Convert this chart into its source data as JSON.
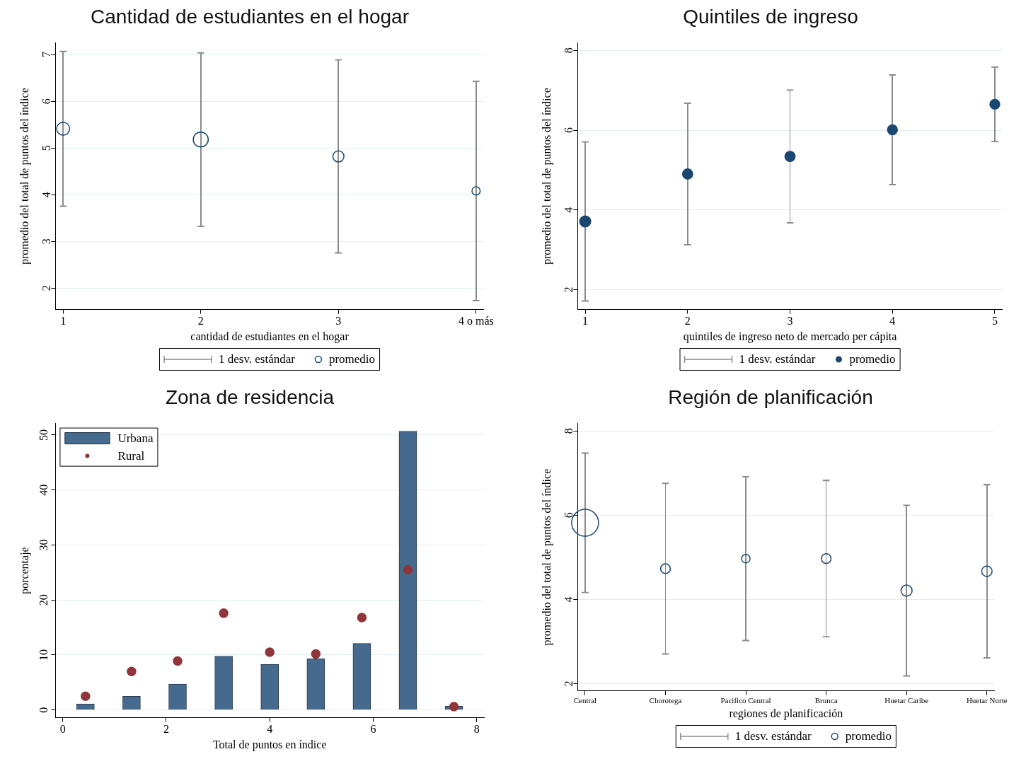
{
  "chart_data": [
    {
      "type": "bubble",
      "title": "Cantidad de estudiantes en el hogar",
      "xlabel": "cantidad de estudiantes en el hogar",
      "ylabel": "promedio del total de puntos del índice",
      "categories": [
        "1",
        "2",
        "3",
        "4 o más"
      ],
      "series": [
        {
          "name": "1 desv. estándar",
          "type": "bar",
          "color": "#8c8c8c",
          "base": [
            3.74,
            3.31,
            2.74,
            1.72
          ],
          "values": [
            3.34,
            3.74,
            4.16,
            4.72
          ]
        },
        {
          "name": "promedio",
          "color": "#1a476f",
          "values": [
            5.41,
            5.18,
            4.82,
            4.08
          ],
          "sizes": [
            0.75,
            1,
            0.55,
            0.3
          ]
        }
      ],
      "ylim": [
        1.54,
        7.25
      ],
      "yticks": [
        2,
        3,
        4,
        5,
        6,
        7
      ],
      "grid": "y",
      "marker": "circle",
      "legend": "bottom"
    },
    {
      "type": "bubble",
      "title": "Quintiles de ingreso",
      "xlabel": "quintiles de ingreso neto de mercado per cápita",
      "ylabel": "promedio del total de puntos del índice",
      "categories": [
        "1",
        "2",
        "3",
        "4",
        "5"
      ],
      "series": [
        {
          "name": "1 desv. estándar",
          "type": "bar",
          "color": "#8c8c8c",
          "base": [
            1.7,
            3.11,
            3.66,
            4.62,
            5.7
          ],
          "values": [
            4.02,
            3.58,
            3.36,
            2.78,
            1.9
          ]
        },
        {
          "name": "promedio",
          "color": "#1a476f",
          "values": [
            3.71,
            4.9,
            5.34,
            6.01,
            6.65
          ],
          "sizes": [
            1,
            0.85,
            0.85,
            0.8,
            0.8
          ]
        }
      ],
      "ylim": [
        1.5,
        8.19
      ],
      "yticks": [
        2,
        4,
        6,
        8
      ],
      "grid": "y",
      "marker": "circle",
      "legend": "bottom"
    },
    {
      "type": "bar",
      "title": "Zona de residencia",
      "xlabel": "Total de puntos en índice",
      "ylabel": "porcentaje",
      "x": [
        0.44,
        1.33,
        2.22,
        3.11,
        4,
        4.89,
        5.78,
        6.67,
        7.56
      ],
      "series": [
        {
          "name": "Urbana",
          "color": "#466a8e",
          "values": [
            1.1,
            2.5,
            4.7,
            9.8,
            8.3,
            9.3,
            12.1,
            50.7,
            0.7
          ]
        },
        {
          "name": "Rural",
          "type": "scatter",
          "color": "#90353b",
          "values": [
            2.5,
            7.0,
            8.9,
            17.6,
            10.5,
            10.2,
            16.8,
            25.5,
            0.6
          ]
        }
      ],
      "xlim": [
        -0.14,
        8.14
      ],
      "xticks": [
        0,
        2,
        4,
        6,
        8
      ],
      "ylim": [
        -1.4,
        52.1
      ],
      "yticks": [
        0,
        10,
        20,
        30,
        40,
        50
      ],
      "grid": "y",
      "marker": "circle",
      "legend": "top left"
    },
    {
      "type": "bubble",
      "title": "Región de planificación",
      "xlabel": "regiones de planificación",
      "ylabel": "promedio del total de puntos del índice",
      "categories": [
        "Central",
        "Chorotega",
        "Pacifico Central",
        "Brunca",
        "Huetar Caribe",
        "Huetar Norte"
      ],
      "series": [
        {
          "name": "1 desv. estándar",
          "type": "bar",
          "color": "#8c8c8c",
          "base": [
            4.15,
            2.69,
            3.01,
            3.1,
            2.17,
            2.6
          ],
          "values": [
            3.34,
            4.08,
            3.92,
            3.74,
            4.08,
            4.14
          ]
        },
        {
          "name": "promedio",
          "color": "#1a476f",
          "values": [
            5.82,
            4.73,
            4.97,
            4.97,
            4.21,
            4.67
          ],
          "sizes": [
            1,
            0.13,
            0.1,
            0.13,
            0.17,
            0.15
          ]
        }
      ],
      "ylim": [
        1.83,
        8.18
      ],
      "yticks": [
        2,
        4,
        6,
        8
      ],
      "grid": "y",
      "marker": "circle",
      "legend": "bottom"
    }
  ]
}
